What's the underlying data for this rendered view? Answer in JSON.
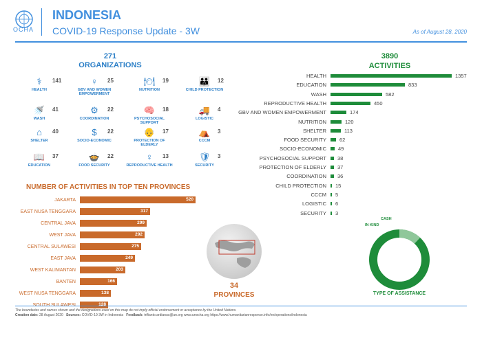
{
  "header": {
    "logo_text": "OCHA",
    "country": "INDONESIA",
    "subtitle": "COVID-19 Response Update - 3W",
    "as_of": "As of August 28, 2020"
  },
  "organizations": {
    "count": "271",
    "title": "ORGANIZATIONS",
    "items": [
      {
        "label": "HEALTH",
        "value": "141",
        "icon": "health-icon"
      },
      {
        "label": "GBV AND WOMEN EMPOWERMENT",
        "value": "25",
        "icon": "gbv-icon"
      },
      {
        "label": "NUTRITION",
        "value": "19",
        "icon": "nutrition-icon"
      },
      {
        "label": "CHILD PROTECTION",
        "value": "12",
        "icon": "child-protection-icon"
      },
      {
        "label": "WASH",
        "value": "41",
        "icon": "wash-icon"
      },
      {
        "label": "COORDINATION",
        "value": "22",
        "icon": "coordination-icon"
      },
      {
        "label": "PSYCHOSOCIAL SUPPORT",
        "value": "18",
        "icon": "psychosocial-icon"
      },
      {
        "label": "LOGISTIC",
        "value": "4",
        "icon": "logistic-icon"
      },
      {
        "label": "SHELTER",
        "value": "40",
        "icon": "shelter-icon"
      },
      {
        "label": "SOCIO-ECONOMIC",
        "value": "22",
        "icon": "socio-economic-icon"
      },
      {
        "label": "PROTECTION OF ELDERLY",
        "value": "17",
        "icon": "elderly-icon"
      },
      {
        "label": "CCCM",
        "value": "3",
        "icon": "cccm-icon"
      },
      {
        "label": "EDUCATION",
        "value": "37",
        "icon": "education-icon"
      },
      {
        "label": "FOOD SECURITY",
        "value": "22",
        "icon": "food-security-icon"
      },
      {
        "label": "REPRODUCTIVE HEALTH",
        "value": "13",
        "icon": "reproductive-health-icon"
      },
      {
        "label": "SECURITY",
        "value": "3",
        "icon": "security-icon"
      }
    ]
  },
  "provinces": {
    "title": "NUMBER OF ACTIVITIES IN TOP TEN PROVINCES",
    "count": "34",
    "count_label": "PROVINCES",
    "max": 520,
    "items": [
      {
        "name": "JAKARTA",
        "value": 520
      },
      {
        "name": "EAST NUSA TENGGARA",
        "value": 317
      },
      {
        "name": "CENTRAL JAVA",
        "value": 299
      },
      {
        "name": "WEST JAVA",
        "value": 292
      },
      {
        "name": "CENTRAL SULAWESI",
        "value": 275
      },
      {
        "name": "EAST JAVA",
        "value": 249
      },
      {
        "name": "WEST KALIMANTAN",
        "value": 203
      },
      {
        "name": "BANTEN",
        "value": 166
      },
      {
        "name": "WEST NUSA TENGGARA",
        "value": 138
      },
      {
        "name": "SOUTH SULAWESI",
        "value": 128
      }
    ]
  },
  "activities": {
    "count": "3890",
    "title": "ACTIVITIES",
    "max": 1357,
    "items": [
      {
        "name": "HEALTH",
        "value": 1357
      },
      {
        "name": "EDUCATION",
        "value": 833
      },
      {
        "name": "WASH",
        "value": 582
      },
      {
        "name": "REPRODUCTIVE HEALTH",
        "value": 450
      },
      {
        "name": "GBV AND WOMEN EMPOWERMENT",
        "value": 174
      },
      {
        "name": "NUTRITION",
        "value": 120
      },
      {
        "name": "SHELTER",
        "value": 113
      },
      {
        "name": "FOOD SECURITY",
        "value": 62
      },
      {
        "name": "SOCIO-ECONOMIC",
        "value": 49
      },
      {
        "name": "PSYCHOSOCIAL SUPPORT",
        "value": 38
      },
      {
        "name": "PROTECTION OF ELDERLY",
        "value": 37
      },
      {
        "name": "COORDINATION",
        "value": 36
      },
      {
        "name": "CHILD PROTECTION",
        "value": 15
      },
      {
        "name": "CCCM",
        "value": 5
      },
      {
        "name": "LOGISTIC",
        "value": 6
      },
      {
        "name": "SECURITY",
        "value": 3
      }
    ]
  },
  "assistance": {
    "title": "TYPE OF ASSISTANCE",
    "cash_label": "CASH",
    "inkind_label": "IN KIND",
    "cash_fraction": 0.12,
    "colors": {
      "inkind": "#1e8c3a",
      "cash": "#8fc79a"
    }
  },
  "footer": {
    "disclaimer": "The boundaries and names shown and the designations used on this map do not imply official endorsement or acceptance by the United Nations.",
    "creation_label": "Creation date:",
    "creation_value": "28 August 2020",
    "sources_label": "Sources:",
    "sources_value": "COVID-19 3W in Indonesia",
    "feedback_label": "Feedback:",
    "feedback_value": "trifianto.ardianus@un.org  www.unocha.org  https://www.humanitarianresponse.info/en/operations/indonesia"
  },
  "colors": {
    "ocha_blue": "#418fde",
    "orange": "#c96a2b",
    "green": "#1e8c3a"
  }
}
